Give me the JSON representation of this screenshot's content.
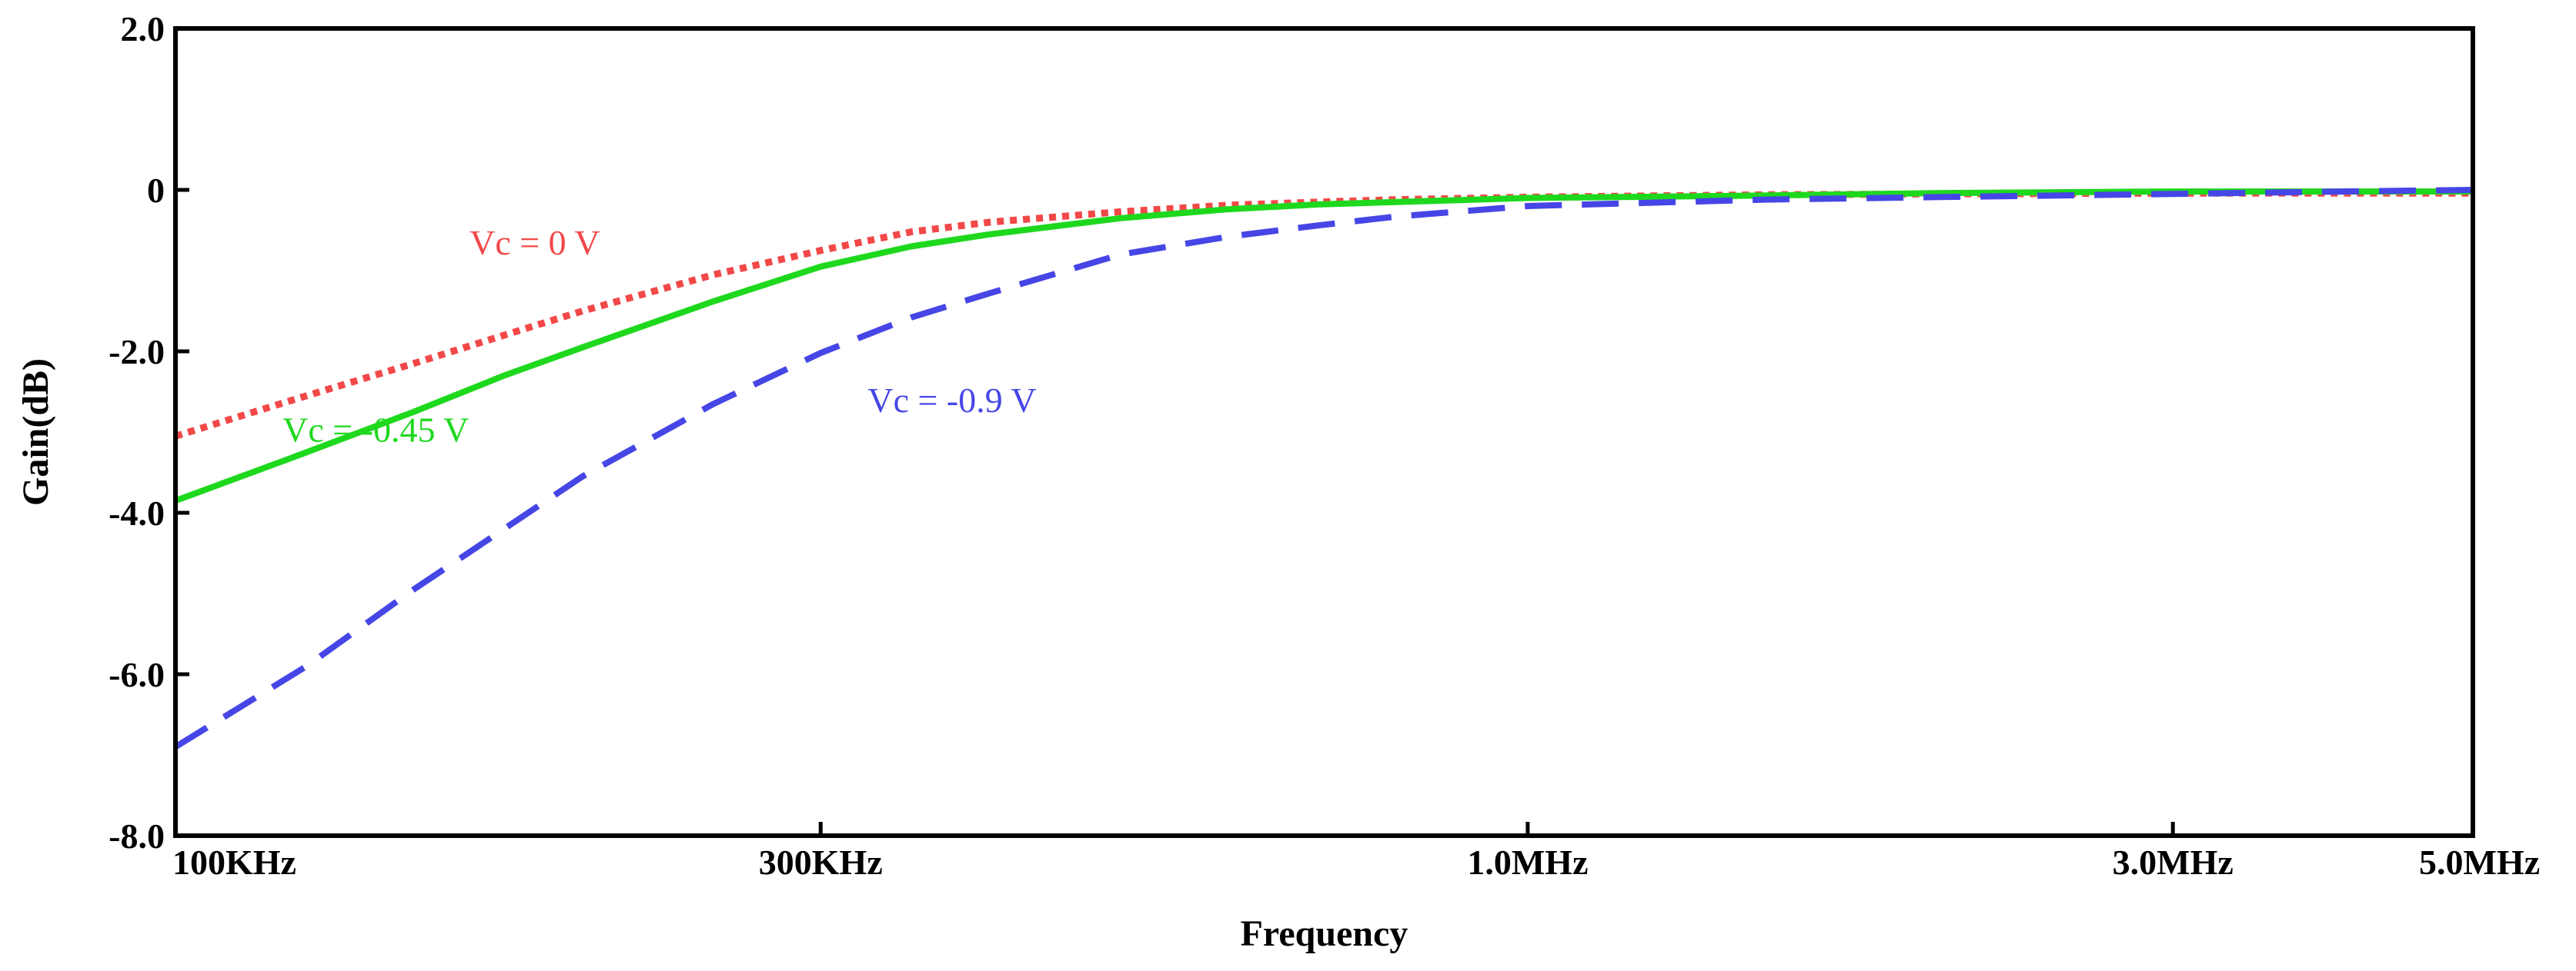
{
  "chart_data": {
    "type": "line",
    "title": "",
    "xlabel": "Frequency",
    "ylabel": "Gain(dB)",
    "x_scale": "log",
    "xlim": [
      100000,
      5000000
    ],
    "ylim": [
      -8.0,
      2.0
    ],
    "grid": false,
    "x_ticks": [
      {
        "value": 100000,
        "label": "100KHz"
      },
      {
        "value": 300000,
        "label": "300KHz"
      },
      {
        "value": 1000000,
        "label": "1.0MHz"
      },
      {
        "value": 3000000,
        "label": "3.0MHz"
      },
      {
        "value": 5000000,
        "label": "5.0MHz"
      }
    ],
    "y_ticks": [
      {
        "value": 2.0,
        "label": "2.0"
      },
      {
        "value": 0,
        "label": "0"
      },
      {
        "value": -2.0,
        "label": "-2.0"
      },
      {
        "value": -4.0,
        "label": "-4.0"
      },
      {
        "value": -6.0,
        "label": "-6.0"
      },
      {
        "value": -8.0,
        "label": "-8.0"
      }
    ],
    "x": [
      100000,
      125000,
      150000,
      175000,
      200000,
      250000,
      300000,
      350000,
      400000,
      500000,
      600000,
      700000,
      800000,
      1000000,
      1500000,
      2000000,
      3000000,
      4000000,
      5000000
    ],
    "series": [
      {
        "name": "Vc = 0 V",
        "color": "#f24848",
        "dash": "dotted",
        "values": [
          -3.05,
          -2.55,
          -2.15,
          -1.8,
          -1.5,
          -1.05,
          -0.75,
          -0.52,
          -0.4,
          -0.27,
          -0.19,
          -0.15,
          -0.12,
          -0.09,
          -0.06,
          -0.05,
          -0.04,
          -0.04,
          -0.04
        ],
        "label": {
          "text": "Vc = 0 V",
          "anchor_x": 165000,
          "anchor_y": -0.8
        }
      },
      {
        "name": "Vc = -0.45 V",
        "color": "#1ed81e",
        "dash": "solid",
        "values": [
          -3.85,
          -3.25,
          -2.75,
          -2.3,
          -1.95,
          -1.38,
          -0.95,
          -0.7,
          -0.55,
          -0.35,
          -0.24,
          -0.18,
          -0.15,
          -0.1,
          -0.07,
          -0.04,
          -0.02,
          -0.02,
          -0.02
        ],
        "label": {
          "text": "Vc = -0.45 V",
          "anchor_x": 120000,
          "anchor_y": -3.12
        }
      },
      {
        "name": "Vc = -0.9 V",
        "color": "#4646e6",
        "dash": "dashed",
        "values": [
          -6.9,
          -5.9,
          -4.95,
          -4.2,
          -3.55,
          -2.65,
          -2.02,
          -1.58,
          -1.28,
          -0.8,
          -0.58,
          -0.44,
          -0.33,
          -0.2,
          -0.12,
          -0.09,
          -0.05,
          -0.02,
          -0.0
        ],
        "label": {
          "text": "Vc = -0.9 V",
          "anchor_x": 325000,
          "anchor_y": -2.75
        }
      }
    ]
  }
}
